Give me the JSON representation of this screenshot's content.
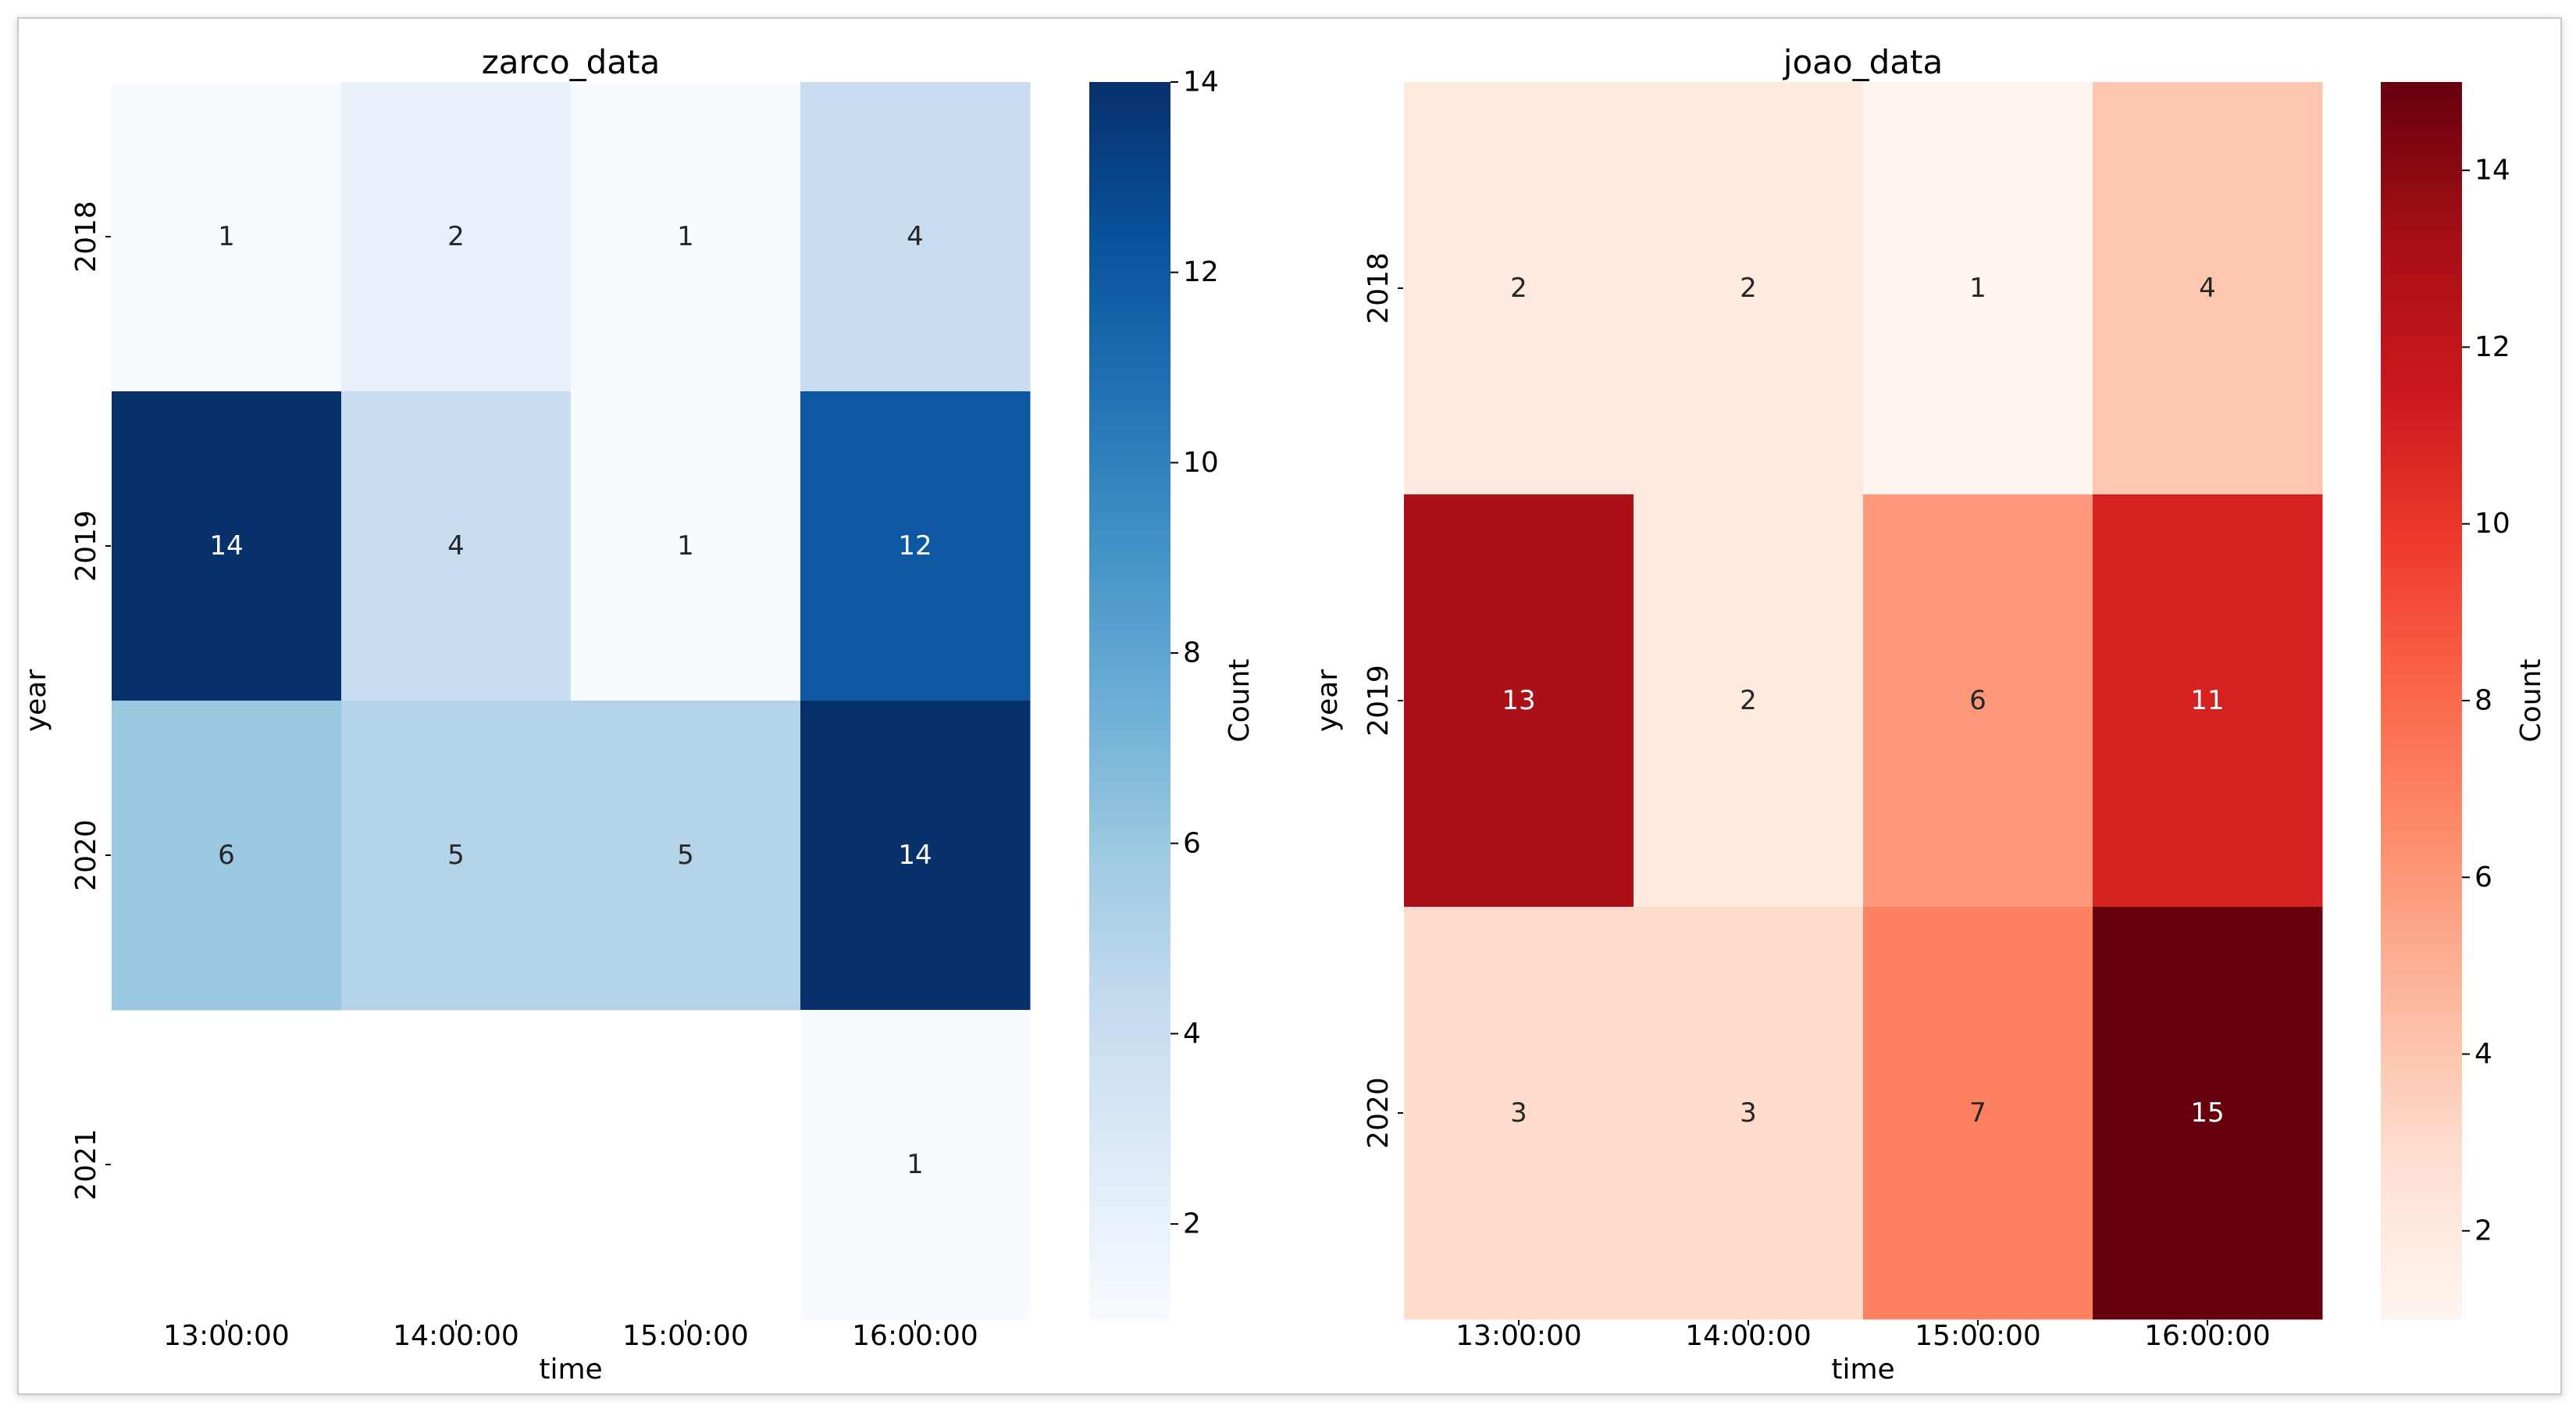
{
  "chart_data": [
    {
      "type": "heatmap",
      "title": "zarco_data",
      "xlabel": "time",
      "ylabel": "year",
      "x": [
        "13:00:00",
        "14:00:00",
        "15:00:00",
        "16:00:00"
      ],
      "y": [
        "2018",
        "2019",
        "2020",
        "2021"
      ],
      "values": [
        [
          1,
          2,
          1,
          4
        ],
        [
          14,
          4,
          1,
          12
        ],
        [
          6,
          5,
          5,
          14
        ],
        [
          null,
          null,
          null,
          1
        ]
      ],
      "colormap": "Blues",
      "colormap_stops": [
        "#f7fbff",
        "#deebf7",
        "#c6dbef",
        "#9ecae1",
        "#6baed6",
        "#4292c6",
        "#2171b5",
        "#08519c",
        "#08306b"
      ],
      "colorbar": {
        "label": "Count",
        "range": [
          1,
          14
        ],
        "ticks": [
          2,
          4,
          6,
          8,
          10,
          12,
          14
        ]
      }
    },
    {
      "type": "heatmap",
      "title": "joao_data",
      "xlabel": "time",
      "ylabel": "year",
      "x": [
        "13:00:00",
        "14:00:00",
        "15:00:00",
        "16:00:00"
      ],
      "y": [
        "2018",
        "2019",
        "2020"
      ],
      "values": [
        [
          2,
          2,
          1,
          4
        ],
        [
          13,
          2,
          6,
          11
        ],
        [
          3,
          3,
          7,
          15
        ]
      ],
      "colormap": "Reds",
      "colormap_stops": [
        "#fff5f0",
        "#fee0d2",
        "#fcbba1",
        "#fc9272",
        "#fb6a4a",
        "#ef3b2c",
        "#cb181d",
        "#a50f15",
        "#67000d"
      ],
      "colorbar": {
        "label": "Count",
        "range": [
          1,
          15
        ],
        "ticks": [
          2,
          4,
          6,
          8,
          10,
          12,
          14
        ]
      }
    }
  ]
}
